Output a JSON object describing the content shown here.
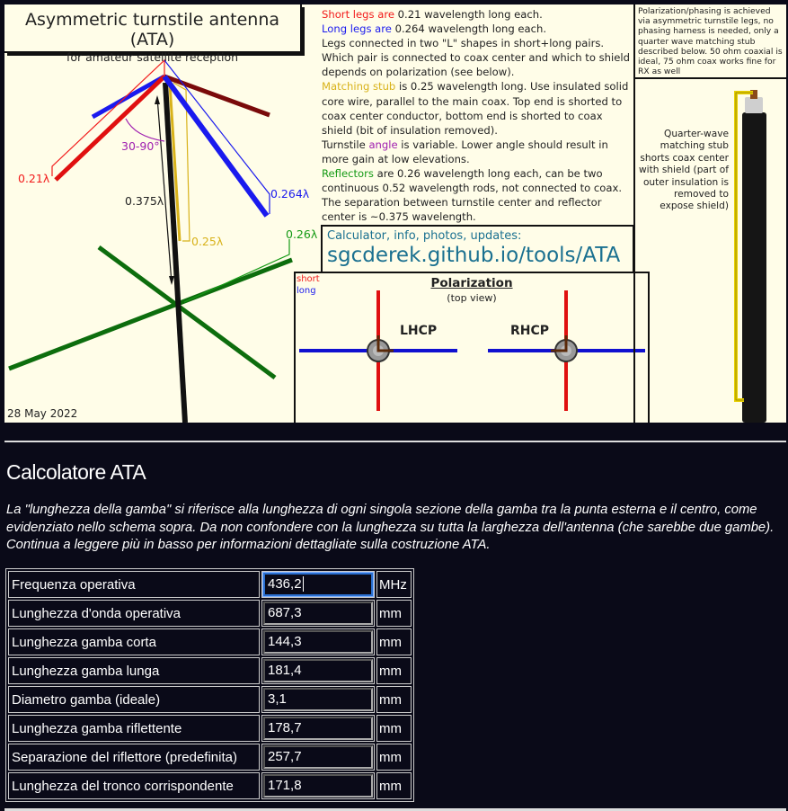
{
  "infographic": {
    "title": "Asymmetric turnstile antenna (ATA)",
    "subtitle": "for amateur satellite reception",
    "date": "28 May 2022",
    "labels": {
      "short_leg": "0.21λ",
      "long_leg": "0.264λ",
      "separation": "0.375λ",
      "stub": "0.25λ",
      "reflector": "0.26λ",
      "angle": "30-90°"
    },
    "description": {
      "p1_a": "Short legs are",
      "p1_b": " 0.21 wavelength long each.",
      "p2_a": "Long legs are",
      "p2_b": " 0.264 wavelength long each.",
      "p3": "Legs connected in two \"L\" shapes in short+long pairs. Which pair is connected to coax center and which to shield depends on polarization (see below).",
      "p4_a": "Matching stub",
      "p4_b": " is 0.25 wavelength long. Use insulated solid core wire, parallel to the main coax. Top end is shorted to coax center conductor, bottom end is shorted to coax shield (bit of insulation removed).",
      "p5_a": "Turnstile ",
      "p5_b": "angle",
      "p5_c": " is variable. Lower angle should result in more gain at low elevations.",
      "p6_a": "Reflectors",
      "p6_b": " are 0.26 wavelength long each, can be two continuous 0.52 wavelength rods, not connected to coax. The separation between turnstile center and reflector center is ~0.375 wavelength."
    },
    "link_caption": "Calculator, info, photos, updates:",
    "link": "sgcderek.github.io/tools/ATA",
    "polarization": {
      "title": "Polarization",
      "subtitle": "(top view)",
      "legend_short": "short",
      "legend_long": "long",
      "left": "LHCP",
      "right": "RHCP"
    },
    "note": "Polarization/phasing is achieved via asymmetric turnstile legs, no phasing harness is needed, only a quarter wave matching stub described below. 50 ohm coaxial is ideal, 75 ohm coax works fine for RX as well",
    "stub_caption": "Quarter-wave matching stub shorts coax center with shield (part of outer insulation is removed to expose shield)",
    "colors": {
      "short": "#f21b1b",
      "long": "#1a1aee",
      "stub": "#d8b21a",
      "angle": "#a020b0",
      "reflector": "#159a15",
      "link": "#1a7090"
    }
  },
  "calculator": {
    "title": "Calcolatore ATA",
    "intro": "La \"lunghezza della gamba\" si riferisce alla lunghezza di ogni singola sezione della gamba tra la punta esterna e il centro, come evidenziato nello schema sopra. Da non confondere con la lunghezza su tutta la larghezza dell'antenna (che sarebbe due gambe). Continua a leggere più in basso per informazioni dettagliate sulla costruzione ATA.",
    "rows": [
      {
        "label": "Frequenza operativa",
        "value": "436,2",
        "unit": "MHz"
      },
      {
        "label": "Lunghezza d'onda operativa",
        "value": "687,3",
        "unit": "mm"
      },
      {
        "label": "Lunghezza gamba corta",
        "value": "144,3",
        "unit": "mm"
      },
      {
        "label": "Lunghezza gamba lunga",
        "value": "181,4",
        "unit": "mm"
      },
      {
        "label": "Diametro gamba (ideale)",
        "value": "3,1",
        "unit": "mm"
      },
      {
        "label": "Lunghezza gamba riflettente",
        "value": "178,7",
        "unit": "mm"
      },
      {
        "label": "Separazione del riflettore (predefinita)",
        "value": "257,7",
        "unit": "mm"
      },
      {
        "label": "Lunghezza del tronco corrispondente",
        "value": "171,8",
        "unit": "mm"
      }
    ]
  }
}
